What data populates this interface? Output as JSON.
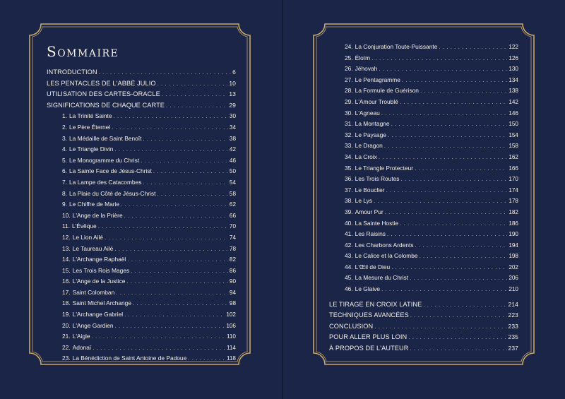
{
  "title": "Sommaire",
  "colors": {
    "background": "#1b2548",
    "frame": "#c9a86a",
    "text": "#f3efe3"
  },
  "left_sections": [
    {
      "label": "INTRODUCTION",
      "page": "6"
    },
    {
      "label": "LES PENTACLES DE L'ABBÉ JULIO",
      "page": "10"
    },
    {
      "label": "UTILISATION DES CARTES-ORACLE",
      "page": "13"
    },
    {
      "label": "SIGNIFICATIONS DE CHAQUE CARTE",
      "page": "29"
    }
  ],
  "left_cards": [
    {
      "num": "1.",
      "label": "La Trinité Sainte",
      "page": "30"
    },
    {
      "num": "2.",
      "label": "Le Père Éternel",
      "page": "34"
    },
    {
      "num": "3.",
      "label": "La Médaille de Saint Benoît",
      "page": "38"
    },
    {
      "num": "4.",
      "label": "Le Triangle Divin",
      "page": "42"
    },
    {
      "num": "5.",
      "label": "Le Monogramme du Christ",
      "page": "46"
    },
    {
      "num": "6.",
      "label": "La Sainte Face de Jésus-Christ",
      "page": "50"
    },
    {
      "num": "7.",
      "label": "La Lampe des Catacombes",
      "page": "54"
    },
    {
      "num": "8.",
      "label": "La Plaie du Côté de Jésus-Christ",
      "page": "58"
    },
    {
      "num": "9.",
      "label": "Le Chiffre de Marie",
      "page": "62"
    },
    {
      "num": "10.",
      "label": "L'Ange de la Prière",
      "page": "66"
    },
    {
      "num": "11.",
      "label": "L'Évêque",
      "page": "70"
    },
    {
      "num": "12.",
      "label": "Le Lion Ailé",
      "page": "74"
    },
    {
      "num": "13.",
      "label": "Le Taureau Ailé",
      "page": "78"
    },
    {
      "num": "14.",
      "label": "L'Archange Raphaël",
      "page": "82"
    },
    {
      "num": "15.",
      "label": "Les Trois Rois Mages",
      "page": "86"
    },
    {
      "num": "16.",
      "label": "L'Ange de la Justice",
      "page": "90"
    },
    {
      "num": "17.",
      "label": "Saint Colomban",
      "page": "94"
    },
    {
      "num": "18.",
      "label": "Saint Michel Archange",
      "page": "98"
    },
    {
      "num": "19.",
      "label": "L'Archange Gabriel",
      "page": "102"
    },
    {
      "num": "20.",
      "label": "L'Ange Gardien",
      "page": "106"
    },
    {
      "num": "21.",
      "label": "L'Aigle",
      "page": "110"
    },
    {
      "num": "22.",
      "label": "Adonaï",
      "page": "114"
    },
    {
      "num": "23.",
      "label": "La Bénédiction de Saint Antoine de Padoue",
      "page": "118"
    }
  ],
  "right_cards": [
    {
      "num": "24.",
      "label": "La Conjuration Toute-Puissante",
      "page": "122"
    },
    {
      "num": "25.",
      "label": "Éloïm",
      "page": "126"
    },
    {
      "num": "26.",
      "label": "Jéhovah",
      "page": "130"
    },
    {
      "num": "27.",
      "label": "Le Pentagramme",
      "page": "134"
    },
    {
      "num": "28.",
      "label": "La Formule de Guérison",
      "page": "138"
    },
    {
      "num": "29.",
      "label": "L'Amour Troublé",
      "page": "142"
    },
    {
      "num": "30.",
      "label": "L'Agneau",
      "page": "146"
    },
    {
      "num": "31.",
      "label": "La Montagne",
      "page": "150"
    },
    {
      "num": "32.",
      "label": "Le Paysage",
      "page": "154"
    },
    {
      "num": "33.",
      "label": "Le Dragon",
      "page": "158"
    },
    {
      "num": "34.",
      "label": "La Croix",
      "page": "162"
    },
    {
      "num": "35.",
      "label": "Le Triangle Protecteur",
      "page": "166"
    },
    {
      "num": "36.",
      "label": "Les Trois Routes",
      "page": "170"
    },
    {
      "num": "37.",
      "label": "Le Bouclier",
      "page": "174"
    },
    {
      "num": "38.",
      "label": "Le Lys",
      "page": "178"
    },
    {
      "num": "39.",
      "label": "Amour Pur",
      "page": "182"
    },
    {
      "num": "40.",
      "label": "La Sainte Hostie",
      "page": "186"
    },
    {
      "num": "41.",
      "label": "Les Raisins",
      "page": "190"
    },
    {
      "num": "42.",
      "label": "Les Charbons Ardents",
      "page": "194"
    },
    {
      "num": "43.",
      "label": "Le Calice et la Colombe",
      "page": "198"
    },
    {
      "num": "44.",
      "label": "L'Œil de Dieu",
      "page": "202"
    },
    {
      "num": "45.",
      "label": "La Mesure du Christ",
      "page": "206"
    },
    {
      "num": "46.",
      "label": "Le Glaive",
      "page": "210"
    }
  ],
  "right_sections": [
    {
      "label": "LE TIRAGE EN CROIX LATINE",
      "page": "214"
    },
    {
      "label": "TECHNIQUES AVANCÉES",
      "page": "223"
    },
    {
      "label": "CONCLUSION",
      "page": "233"
    },
    {
      "label": "POUR ALLER PLUS LOIN",
      "page": "235"
    },
    {
      "label": "À PROPOS DE L'AUTEUR",
      "page": "237"
    }
  ]
}
